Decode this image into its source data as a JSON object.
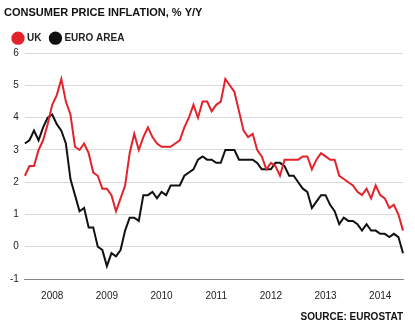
{
  "chart_data": {
    "type": "line",
    "title": "CONSUMER PRICE INFLATION, % Y/Y",
    "source": "SOURCE: EUROSTAT",
    "categories": [
      null,
      null,
      null,
      null,
      null,
      null,
      "2008",
      null,
      null,
      null,
      null,
      null,
      null,
      null,
      null,
      null,
      null,
      null,
      "2009",
      null,
      null,
      null,
      null,
      null,
      null,
      null,
      null,
      null,
      null,
      null,
      "2010",
      null,
      null,
      null,
      null,
      null,
      null,
      null,
      null,
      null,
      null,
      null,
      "2011",
      null,
      null,
      null,
      null,
      null,
      null,
      null,
      null,
      null,
      null,
      null,
      "2012",
      null,
      null,
      null,
      null,
      null,
      null,
      null,
      null,
      null,
      null,
      null,
      "2013",
      null,
      null,
      null,
      null,
      null,
      null,
      null,
      null,
      null,
      null,
      null,
      "2014",
      null,
      null,
      null,
      null,
      null
    ],
    "series": [
      {
        "name": "UK",
        "color": "#e3232c",
        "values": [
          2.2,
          2.5,
          2.5,
          3.0,
          3.3,
          3.8,
          4.4,
          4.7,
          5.2,
          4.5,
          4.1,
          3.1,
          3.0,
          3.2,
          2.9,
          2.3,
          2.2,
          1.8,
          1.8,
          1.6,
          1.1,
          1.5,
          1.9,
          2.9,
          3.5,
          3.0,
          3.4,
          3.7,
          3.4,
          3.2,
          3.1,
          3.1,
          3.1,
          3.2,
          3.3,
          3.7,
          4.0,
          4.4,
          4.0,
          4.5,
          4.5,
          4.2,
          4.4,
          4.5,
          5.2,
          5.0,
          4.8,
          4.2,
          3.6,
          3.4,
          3.5,
          3.0,
          2.8,
          2.4,
          2.6,
          2.5,
          2.2,
          2.7,
          2.7,
          2.7,
          2.7,
          2.8,
          2.8,
          2.4,
          2.7,
          2.9,
          2.8,
          2.7,
          2.7,
          2.2,
          2.1,
          2.0,
          1.9,
          1.7,
          1.6,
          1.8,
          1.5,
          1.9,
          1.6,
          1.5,
          1.2,
          1.3,
          1.0,
          0.5
        ]
      },
      {
        "name": "EURO AREA",
        "color": "#111111",
        "values": [
          3.2,
          3.3,
          3.6,
          3.3,
          3.7,
          4.0,
          4.1,
          3.8,
          3.6,
          3.2,
          2.1,
          1.6,
          1.1,
          1.2,
          0.6,
          0.6,
          0.0,
          -0.1,
          -0.6,
          -0.2,
          -0.3,
          -0.1,
          0.5,
          0.9,
          0.9,
          0.8,
          1.6,
          1.6,
          1.7,
          1.5,
          1.7,
          1.6,
          1.9,
          1.9,
          1.9,
          2.2,
          2.3,
          2.4,
          2.7,
          2.8,
          2.7,
          2.7,
          2.6,
          2.6,
          3.0,
          3.0,
          3.0,
          2.7,
          2.7,
          2.7,
          2.7,
          2.6,
          2.4,
          2.4,
          2.4,
          2.6,
          2.6,
          2.5,
          2.2,
          2.2,
          2.0,
          1.8,
          1.7,
          1.2,
          1.4,
          1.6,
          1.6,
          1.3,
          1.1,
          0.7,
          0.9,
          0.8,
          0.8,
          0.7,
          0.5,
          0.7,
          0.5,
          0.5,
          0.4,
          0.4,
          0.3,
          0.4,
          0.3,
          -0.2
        ]
      }
    ],
    "ylim": [
      -1,
      6
    ],
    "yticks": [
      -1,
      0,
      1,
      2,
      3,
      4,
      5,
      6
    ],
    "grid": true,
    "legend": "top-left"
  }
}
